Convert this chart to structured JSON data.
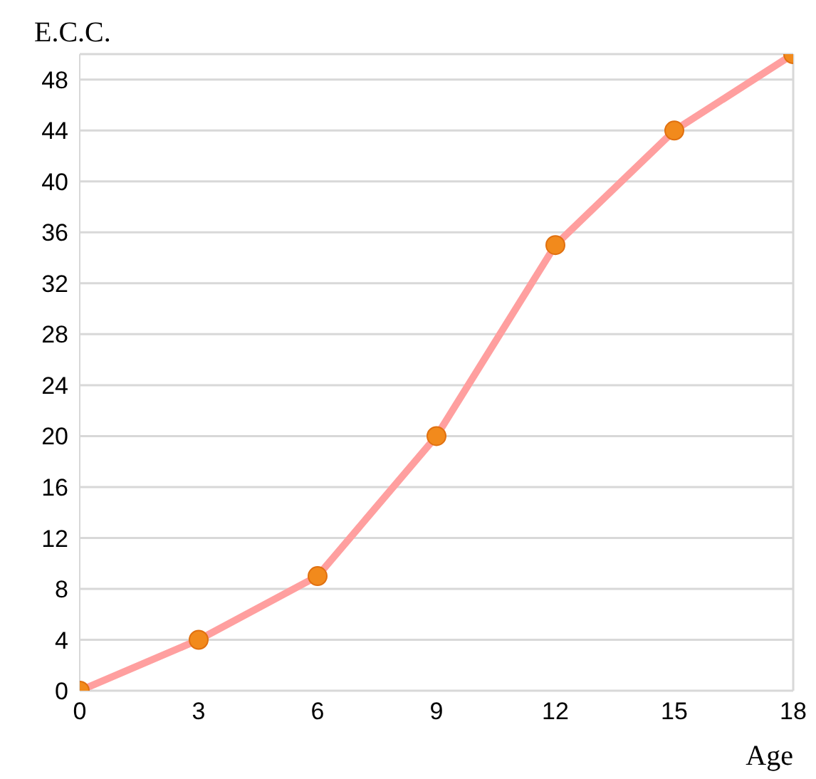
{
  "chart_data": {
    "type": "line",
    "xlabel": "Age",
    "ylabel": "E.C.C.",
    "x": [
      0,
      3,
      6,
      9,
      12,
      15,
      18
    ],
    "series": [
      {
        "color": "#ff9f9f",
        "colors": [
          "#f28a1c",
          "#f28a1c",
          "#f28a1c",
          "#f28a1c",
          "#f28a1c",
          "#f28a1c",
          "#f28a1c"
        ],
        "values": [
          0,
          4,
          9,
          20,
          35,
          44,
          50
        ]
      }
    ],
    "xlim": [
      0,
      18
    ],
    "xticks": [
      0,
      3,
      6,
      9,
      12,
      15,
      18
    ],
    "ylim": [
      0,
      50
    ],
    "yticks": [
      0,
      4,
      8,
      12,
      16,
      20,
      24,
      28,
      32,
      36,
      40,
      44,
      48
    ],
    "grid": "y",
    "marker": "circle",
    "line_style": "solid"
  }
}
